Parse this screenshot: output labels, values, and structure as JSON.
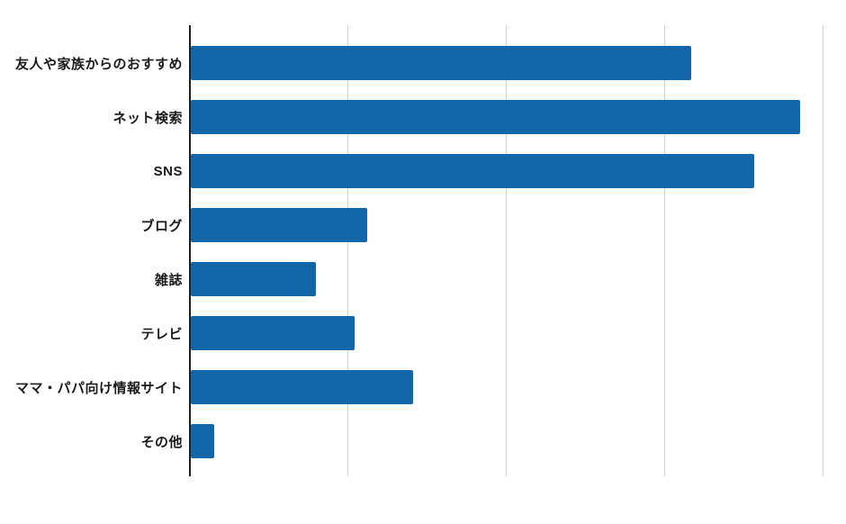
{
  "chart_data": {
    "type": "bar",
    "orientation": "horizontal",
    "title": "",
    "xlabel": "",
    "ylabel": "",
    "categories": [
      "友人や家族からのおすすめ",
      "ネット検索",
      "SNS",
      "ブログ",
      "雑誌",
      "テレビ",
      "ママ・パパ向け情報サイト",
      "その他"
    ],
    "values": [
      31.7,
      38.6,
      35.7,
      11.2,
      7.9,
      10.4,
      14.1,
      1.5
    ],
    "xlim": [
      0,
      41.5
    ],
    "x_gridlines": [
      10,
      20,
      30,
      40
    ],
    "axis_tick_labels_visible": false,
    "grid": "vertical-only",
    "legend": "none",
    "bar_color": "#1266a9",
    "gridline_color": "#cfcfcf",
    "axis_line_color": "#1f1f1f",
    "label_color": "#1a1a1a",
    "background_color": "#ffffff"
  }
}
